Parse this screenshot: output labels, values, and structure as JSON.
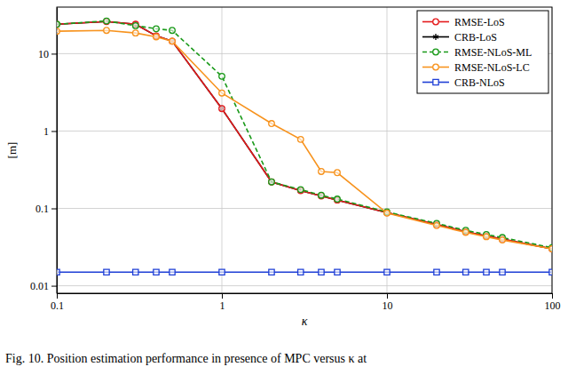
{
  "chart_data": {
    "type": "line",
    "x_label": "κ",
    "y_label": "[m]",
    "caption": "Fig. 10.  Position estimation performance in presence of MPC versus κ at",
    "log": true,
    "grid": true,
    "legend": "top-right",
    "x": [
      0.1,
      0.2,
      0.3,
      0.4,
      0.5,
      1,
      2,
      3,
      4,
      5,
      10,
      20,
      30,
      40,
      50,
      100
    ],
    "xlim": [
      0.1,
      100
    ],
    "xticks": [
      0.1,
      1,
      10,
      100
    ],
    "ylim": [
      0.008,
      40
    ],
    "yticks": [
      0.01,
      0.1,
      1,
      10
    ],
    "series": [
      {
        "name": "RMSE-LoS",
        "color": "#e41a1c",
        "marker": "circle",
        "line_style": "solid",
        "values": [
          24,
          26,
          24,
          17,
          14.5,
          1.95,
          0.22,
          0.17,
          0.145,
          0.128,
          0.088,
          0.062,
          0.05,
          0.044,
          0.04,
          0.03
        ]
      },
      {
        "name": "CRB-LoS",
        "color": "#000000",
        "marker": "asterisk",
        "line_style": "solid",
        "values": [
          24,
          26,
          24,
          17,
          14.5,
          1.95,
          0.22,
          0.17,
          0.145,
          0.128,
          0.088,
          0.062,
          0.05,
          0.044,
          0.04,
          0.03
        ]
      },
      {
        "name": "RMSE-NLoS-ML",
        "color": "#1a9a1a",
        "marker": "circle",
        "line_style": "dashed",
        "values": [
          24,
          26.5,
          23,
          21,
          20,
          5.1,
          0.22,
          0.175,
          0.148,
          0.132,
          0.09,
          0.064,
          0.052,
          0.046,
          0.042,
          0.031
        ]
      },
      {
        "name": "RMSE-NLoS-LC",
        "color": "#f7931e",
        "marker": "circle",
        "line_style": "solid",
        "values": [
          19.5,
          20,
          18.5,
          16.5,
          14.5,
          3.1,
          1.25,
          0.78,
          0.3,
          0.29,
          0.087,
          0.06,
          0.049,
          0.043,
          0.039,
          0.03
        ]
      },
      {
        "name": "CRB-NLoS",
        "color": "#1f3fd6",
        "marker": "square",
        "line_style": "solid",
        "values": [
          0.015,
          0.015,
          0.015,
          0.015,
          0.015,
          0.015,
          0.015,
          0.015,
          0.015,
          0.015,
          0.015,
          0.015,
          0.015,
          0.015,
          0.015,
          0.015
        ]
      }
    ]
  }
}
